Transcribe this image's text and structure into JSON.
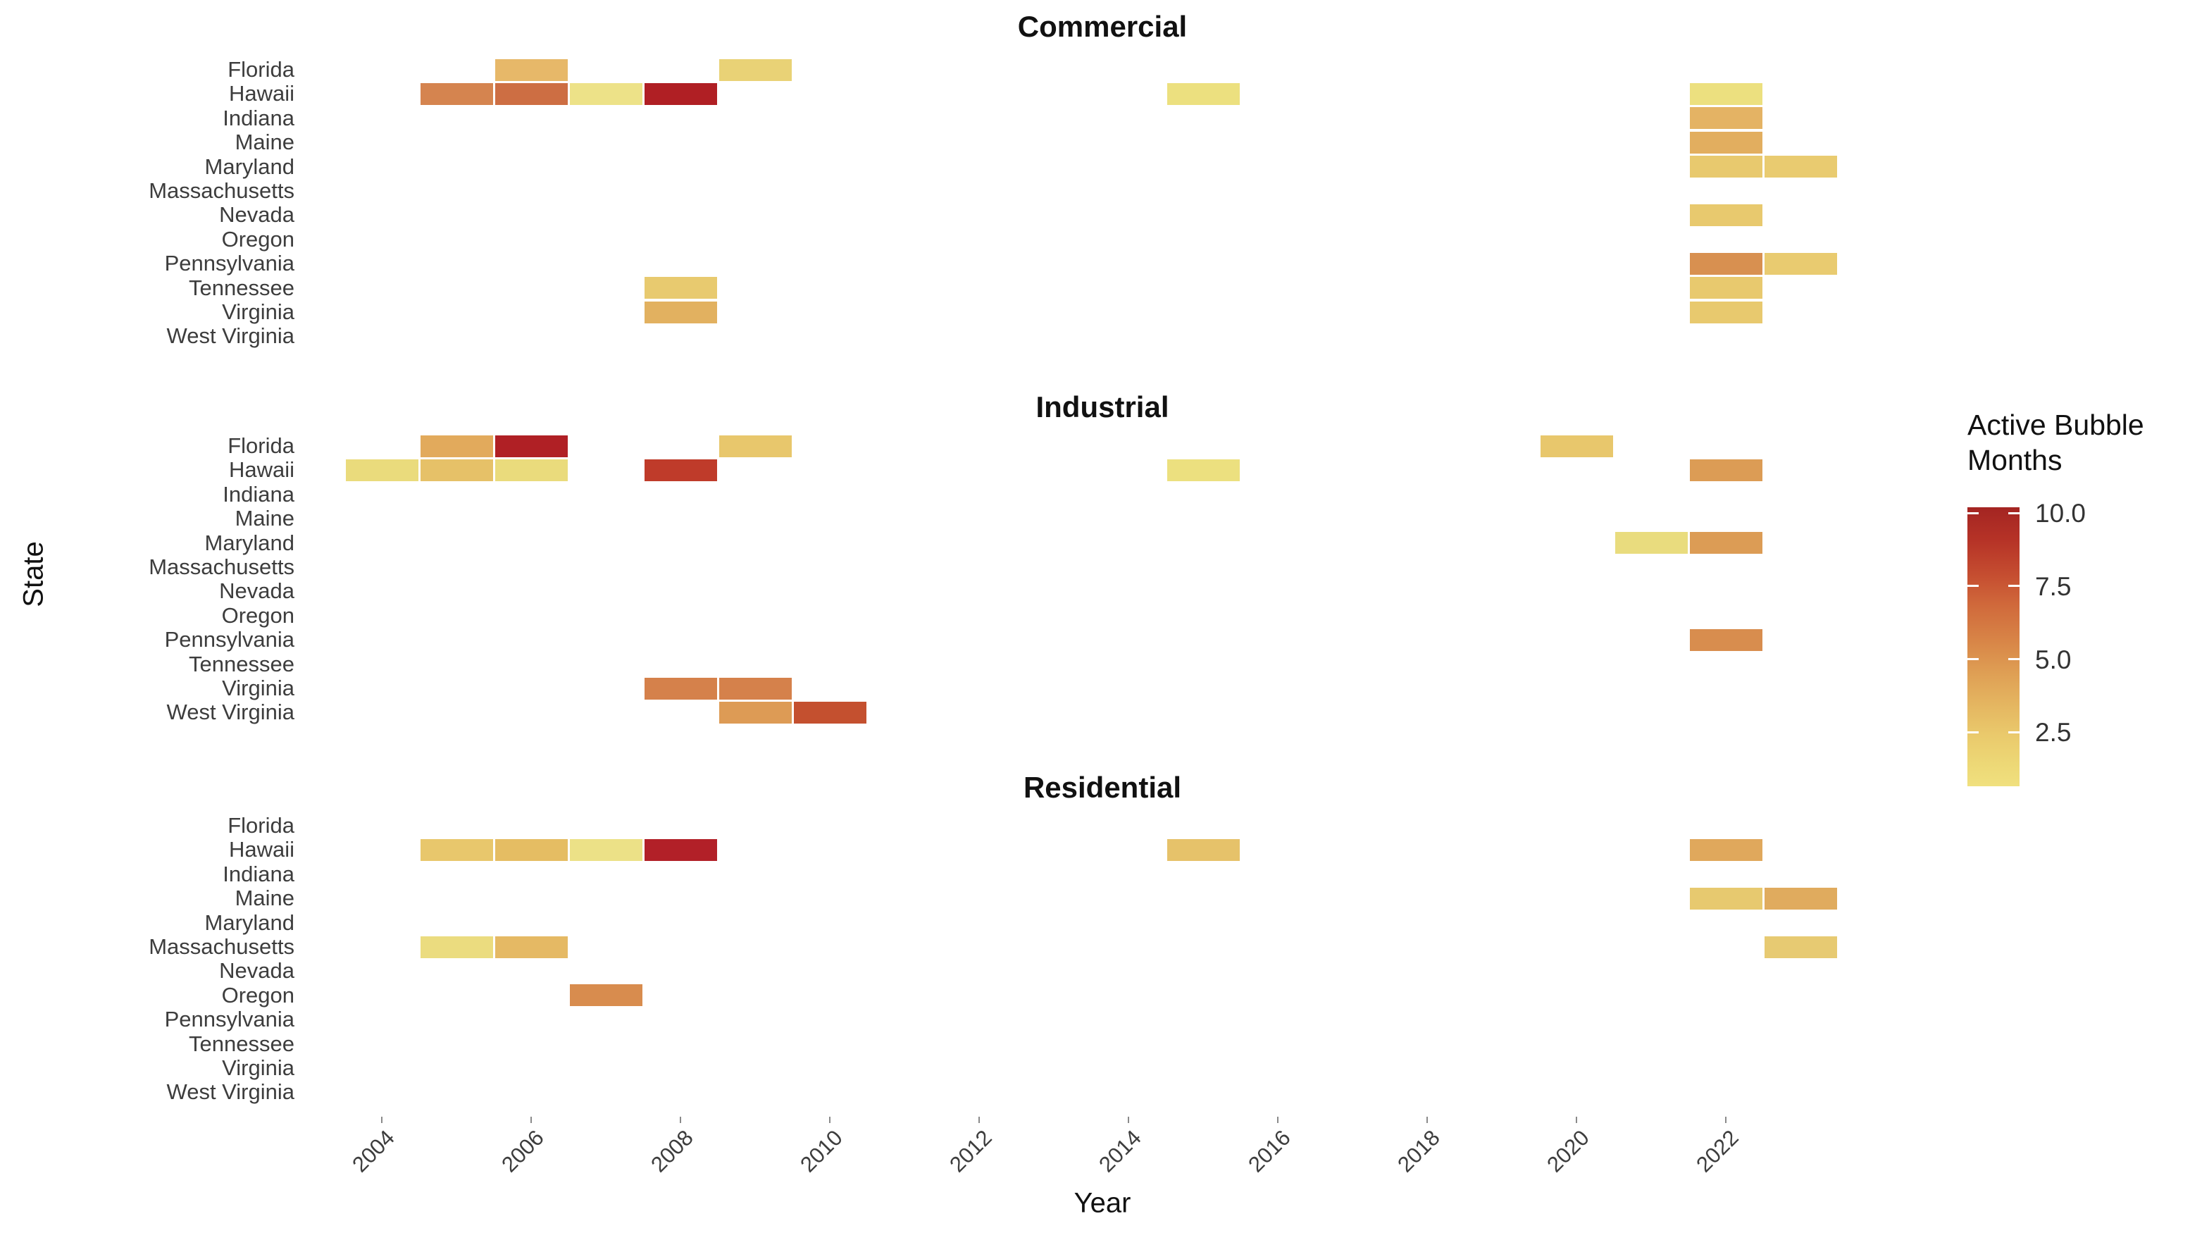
{
  "chart_data": {
    "type": "heatmap",
    "title": "",
    "xlabel": "Year",
    "ylabel": "State",
    "facets": [
      "Commercial",
      "Industrial",
      "Residential"
    ],
    "states": [
      "Florida",
      "Hawaii",
      "Indiana",
      "Maine",
      "Maryland",
      "Massachusetts",
      "Nevada",
      "Oregon",
      "Pennsylvania",
      "Tennessee",
      "Virginia",
      "West Virginia"
    ],
    "x_tick_years": [
      2004,
      2006,
      2008,
      2010,
      2012,
      2014,
      2016,
      2018,
      2020,
      2022
    ],
    "x_range": [
      2003.4,
      2023.6
    ],
    "grid": false,
    "legend": {
      "title": "Active Bubble\nMonths",
      "tick_labels": [
        "10.0",
        "7.5",
        "5.0",
        "2.5"
      ],
      "tick_values": [
        10.0,
        7.5,
        5.0,
        2.5
      ],
      "domain": [
        0.65,
        10.2
      ],
      "position": "right",
      "color_low": "#f0e07e",
      "color_mid": "#d88547",
      "color_high": "#a42522"
    },
    "tiles": [
      {
        "facet": "Commercial",
        "state": "Florida",
        "year": 2006,
        "months": 4,
        "color": "#e7b869"
      },
      {
        "facet": "Commercial",
        "state": "Florida",
        "year": 2009,
        "months": 2.5,
        "color": "#e9d276"
      },
      {
        "facet": "Commercial",
        "state": "Hawaii",
        "year": 2005,
        "months": 6,
        "color": "#d5844f"
      },
      {
        "facet": "Commercial",
        "state": "Hawaii",
        "year": 2006,
        "months": 7,
        "color": "#cd6e43"
      },
      {
        "facet": "Commercial",
        "state": "Hawaii",
        "year": 2007,
        "months": 1.5,
        "color": "#ede288"
      },
      {
        "facet": "Commercial",
        "state": "Hawaii",
        "year": 2008,
        "months": 10,
        "color": "#b01f24"
      },
      {
        "facet": "Commercial",
        "state": "Hawaii",
        "year": 2015,
        "months": 2,
        "color": "#ece07f"
      },
      {
        "facet": "Commercial",
        "state": "Hawaii",
        "year": 2022,
        "months": 2,
        "color": "#ece07f"
      },
      {
        "facet": "Commercial",
        "state": "Indiana",
        "year": 2022,
        "months": 4,
        "color": "#e4b364"
      },
      {
        "facet": "Commercial",
        "state": "Maine",
        "year": 2022,
        "months": 4.5,
        "color": "#e2ae5f"
      },
      {
        "facet": "Commercial",
        "state": "Maryland",
        "year": 2022,
        "months": 3,
        "color": "#e8c96e"
      },
      {
        "facet": "Commercial",
        "state": "Maryland",
        "year": 2023,
        "months": 3,
        "color": "#e9cb70"
      },
      {
        "facet": "Commercial",
        "state": "Nevada",
        "year": 2022,
        "months": 3,
        "color": "#e8c96e"
      },
      {
        "facet": "Commercial",
        "state": "Pennsylvania",
        "year": 2022,
        "months": 5.5,
        "color": "#d89050"
      },
      {
        "facet": "Commercial",
        "state": "Pennsylvania",
        "year": 2023,
        "months": 3,
        "color": "#e9cb70"
      },
      {
        "facet": "Commercial",
        "state": "Tennessee",
        "year": 2008,
        "months": 3,
        "color": "#e8ca6f"
      },
      {
        "facet": "Commercial",
        "state": "Tennessee",
        "year": 2022,
        "months": 3,
        "color": "#e8c96e"
      },
      {
        "facet": "Commercial",
        "state": "Virginia",
        "year": 2008,
        "months": 4,
        "color": "#e2b160"
      },
      {
        "facet": "Commercial",
        "state": "Virginia",
        "year": 2022,
        "months": 3,
        "color": "#e8c96e"
      },
      {
        "facet": "Industrial",
        "state": "Florida",
        "year": 2005,
        "months": 4.5,
        "color": "#e2aa5c"
      },
      {
        "facet": "Industrial",
        "state": "Florida",
        "year": 2006,
        "months": 10,
        "color": "#b02025"
      },
      {
        "facet": "Industrial",
        "state": "Florida",
        "year": 2009,
        "months": 3,
        "color": "#e8c76c"
      },
      {
        "facet": "Industrial",
        "state": "Florida",
        "year": 2020,
        "months": 3,
        "color": "#e8c76c"
      },
      {
        "facet": "Industrial",
        "state": "Hawaii",
        "year": 2004,
        "months": 2,
        "color": "#eadb7c"
      },
      {
        "facet": "Industrial",
        "state": "Hawaii",
        "year": 2005,
        "months": 3.5,
        "color": "#e6c168"
      },
      {
        "facet": "Industrial",
        "state": "Hawaii",
        "year": 2006,
        "months": 2,
        "color": "#eadb7c"
      },
      {
        "facet": "Industrial",
        "state": "Hawaii",
        "year": 2008,
        "months": 9,
        "color": "#bf3b2a"
      },
      {
        "facet": "Industrial",
        "state": "Hawaii",
        "year": 2015,
        "months": 2,
        "color": "#ece07f"
      },
      {
        "facet": "Industrial",
        "state": "Hawaii",
        "year": 2022,
        "months": 5,
        "color": "#dc9c55"
      },
      {
        "facet": "Industrial",
        "state": "Maryland",
        "year": 2021,
        "months": 2,
        "color": "#e9dc7e"
      },
      {
        "facet": "Industrial",
        "state": "Maryland",
        "year": 2022,
        "months": 5,
        "color": "#dc9c55"
      },
      {
        "facet": "Industrial",
        "state": "Pennsylvania",
        "year": 2022,
        "months": 5.5,
        "color": "#d88d4e"
      },
      {
        "facet": "Industrial",
        "state": "Virginia",
        "year": 2008,
        "months": 6,
        "color": "#d5814b"
      },
      {
        "facet": "Industrial",
        "state": "Virginia",
        "year": 2009,
        "months": 6,
        "color": "#d5814b"
      },
      {
        "facet": "Industrial",
        "state": "West Virginia",
        "year": 2009,
        "months": 5,
        "color": "#dd9b55"
      },
      {
        "facet": "Industrial",
        "state": "West Virginia",
        "year": 2010,
        "months": 8,
        "color": "#c4502f"
      },
      {
        "facet": "Residential",
        "state": "Hawaii",
        "year": 2005,
        "months": 3,
        "color": "#e8c76c"
      },
      {
        "facet": "Residential",
        "state": "Hawaii",
        "year": 2006,
        "months": 3.5,
        "color": "#e5bd63"
      },
      {
        "facet": "Residential",
        "state": "Hawaii",
        "year": 2007,
        "months": 1.5,
        "color": "#ece187"
      },
      {
        "facet": "Residential",
        "state": "Hawaii",
        "year": 2008,
        "months": 10,
        "color": "#b22028"
      },
      {
        "facet": "Residential",
        "state": "Hawaii",
        "year": 2015,
        "months": 3.5,
        "color": "#e6c26a"
      },
      {
        "facet": "Residential",
        "state": "Hawaii",
        "year": 2022,
        "months": 4.5,
        "color": "#e0a85c"
      },
      {
        "facet": "Residential",
        "state": "Maine",
        "year": 2022,
        "months": 3,
        "color": "#e7c96f"
      },
      {
        "facet": "Residential",
        "state": "Maine",
        "year": 2023,
        "months": 4.5,
        "color": "#e0ab5e"
      },
      {
        "facet": "Residential",
        "state": "Massachusetts",
        "year": 2005,
        "months": 2,
        "color": "#ebdc7f"
      },
      {
        "facet": "Residential",
        "state": "Massachusetts",
        "year": 2006,
        "months": 4,
        "color": "#e5b964"
      },
      {
        "facet": "Residential",
        "state": "Massachusetts",
        "year": 2023,
        "months": 3,
        "color": "#e7ca72"
      },
      {
        "facet": "Residential",
        "state": "Oregon",
        "year": 2007,
        "months": 5.5,
        "color": "#d88c4e"
      }
    ]
  }
}
